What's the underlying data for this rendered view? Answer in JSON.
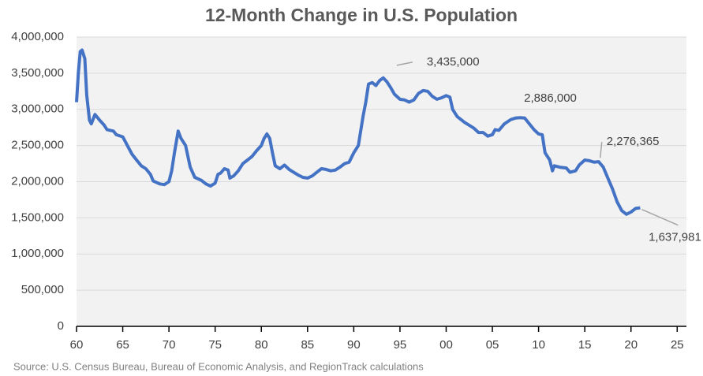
{
  "chart_data": {
    "type": "line",
    "title": "12-Month Change in U.S. Population",
    "source": "Source: U.S. Census Bureau, Bureau of Economic Analysis, and RegionTrack calculations",
    "xlim": [
      1960,
      2026
    ],
    "xticks": [
      {
        "value": 1960,
        "label": "60"
      },
      {
        "value": 1965,
        "label": "65"
      },
      {
        "value": 1970,
        "label": "70"
      },
      {
        "value": 1975,
        "label": "75"
      },
      {
        "value": 1980,
        "label": "80"
      },
      {
        "value": 1985,
        "label": "85"
      },
      {
        "value": 1990,
        "label": "90"
      },
      {
        "value": 1995,
        "label": "95"
      },
      {
        "value": 2000,
        "label": "00"
      },
      {
        "value": 2005,
        "label": "05"
      },
      {
        "value": 2010,
        "label": "10"
      },
      {
        "value": 2015,
        "label": "15"
      },
      {
        "value": 2020,
        "label": "20"
      },
      {
        "value": 2025,
        "label": "25"
      }
    ],
    "ylim": [
      0,
      4000000
    ],
    "yticks": [
      0,
      {
        "value": 500000,
        "label": "500,000"
      },
      {
        "value": 1000000,
        "label": "1,000,000"
      },
      {
        "value": 1500000,
        "label": "1,500,000"
      },
      {
        "value": 2000000,
        "label": "2,000,000"
      },
      {
        "value": 2500000,
        "label": "2,500,000"
      },
      {
        "value": 3000000,
        "label": "3,000,000"
      },
      {
        "value": 3500000,
        "label": "3,500,000"
      },
      {
        "value": 4000000,
        "label": "4,000,000"
      }
    ],
    "grid": true,
    "x": [
      1960.0,
      1960.2,
      1960.4,
      1960.6,
      1960.9,
      1961.1,
      1961.4,
      1961.6,
      1962.0,
      1962.5,
      1963.0,
      1963.3,
      1964.0,
      1964.3,
      1965.0,
      1965.5,
      1966.0,
      1966.5,
      1967.0,
      1967.5,
      1968.0,
      1968.3,
      1969.0,
      1969.5,
      1970.0,
      1970.3,
      1970.6,
      1971.0,
      1971.3,
      1971.8,
      1972.3,
      1972.8,
      1973.5,
      1974.0,
      1974.5,
      1975.0,
      1975.3,
      1975.6,
      1976.0,
      1976.4,
      1976.6,
      1977.0,
      1977.5,
      1978.0,
      1978.5,
      1979.0,
      1979.5,
      1980.0,
      1980.3,
      1980.6,
      1980.9,
      1981.2,
      1981.5,
      1982.0,
      1982.5,
      1983.0,
      1983.5,
      1984.0,
      1984.5,
      1985.0,
      1985.5,
      1986.0,
      1986.5,
      1987.0,
      1987.5,
      1988.0,
      1988.5,
      1989.0,
      1989.5,
      1990.0,
      1990.5,
      1991.0,
      1991.3,
      1991.6,
      1992.0,
      1992.4,
      1992.8,
      1993.2,
      1993.6,
      1994.0,
      1994.4,
      1995.0,
      1995.5,
      1996.0,
      1996.5,
      1997.0,
      1997.5,
      1998.0,
      1998.5,
      1999.0,
      1999.5,
      2000.0,
      2000.4,
      2000.7,
      2001.2,
      2002.0,
      2003.0,
      2003.5,
      2004.0,
      2004.5,
      2005.0,
      2005.3,
      2005.7,
      2006.3,
      2007.0,
      2007.5,
      2008.0,
      2008.5,
      2009.0,
      2009.5,
      2010.0,
      2010.4,
      2010.7,
      2011.2,
      2011.5,
      2011.7,
      2012.3,
      2013.0,
      2013.4,
      2014.0,
      2014.4,
      2015.0,
      2015.5,
      2016.0,
      2016.5,
      2017.0,
      2017.5,
      2018.0,
      2018.5,
      2019.0,
      2019.5,
      2020.0,
      2020.5,
      2021.0
    ],
    "series": [
      {
        "name": "12-Month Change",
        "color": "#4472c4",
        "values": [
          3100000,
          3500000,
          3800000,
          3820000,
          3700000,
          3200000,
          2850000,
          2800000,
          2930000,
          2850000,
          2780000,
          2720000,
          2700000,
          2650000,
          2620000,
          2500000,
          2380000,
          2300000,
          2220000,
          2180000,
          2100000,
          2010000,
          1970000,
          1960000,
          2000000,
          2150000,
          2400000,
          2700000,
          2600000,
          2500000,
          2200000,
          2060000,
          2020000,
          1970000,
          1940000,
          1980000,
          2100000,
          2120000,
          2180000,
          2160000,
          2050000,
          2080000,
          2150000,
          2250000,
          2300000,
          2350000,
          2430000,
          2500000,
          2600000,
          2660000,
          2600000,
          2400000,
          2220000,
          2180000,
          2230000,
          2170000,
          2130000,
          2090000,
          2060000,
          2050000,
          2080000,
          2130000,
          2180000,
          2170000,
          2150000,
          2160000,
          2200000,
          2250000,
          2270000,
          2400000,
          2500000,
          2900000,
          3100000,
          3350000,
          3370000,
          3330000,
          3400000,
          3435000,
          3380000,
          3300000,
          3210000,
          3140000,
          3130000,
          3100000,
          3130000,
          3220000,
          3260000,
          3250000,
          3180000,
          3140000,
          3160000,
          3190000,
          3170000,
          3000000,
          2900000,
          2820000,
          2740000,
          2680000,
          2680000,
          2630000,
          2650000,
          2720000,
          2710000,
          2800000,
          2860000,
          2880000,
          2886000,
          2880000,
          2800000,
          2720000,
          2660000,
          2650000,
          2400000,
          2300000,
          2150000,
          2220000,
          2200000,
          2190000,
          2130000,
          2150000,
          2230000,
          2300000,
          2290000,
          2270000,
          2276365,
          2200000,
          2050000,
          1900000,
          1720000,
          1600000,
          1550000,
          1580000,
          1630000,
          1637981
        ]
      }
    ],
    "annotations": [
      {
        "text": "3,435,000",
        "x": 1993.2,
        "y": 3435000
      },
      {
        "text": "2,886,000",
        "x": 2008.0,
        "y": 2886000
      },
      {
        "text": "2,276,365",
        "x": 2016.5,
        "y": 2276365
      },
      {
        "text": "1,637,981",
        "x": 2021.0,
        "y": 1637981
      }
    ]
  }
}
